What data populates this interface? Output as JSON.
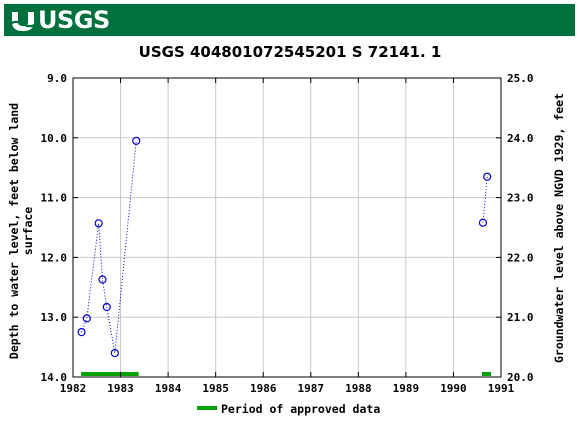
{
  "banner": {
    "logo_text": "USGS",
    "logo_icon": "usgs-wave-icon",
    "color": "#00703c"
  },
  "chart_data": {
    "type": "scatter",
    "title": "USGS 404801072545201 S 72141. 1",
    "ylabel_left": "Depth to water level, feet below land surface",
    "ylabel_left_lines": [
      "Depth to water level, feet below land",
      "surface"
    ],
    "ylabel_right": "Groundwater level above NGVD 1929, feet",
    "x_ticks": [
      "1982",
      "1983",
      "1984",
      "1985",
      "1986",
      "1987",
      "1988",
      "1989",
      "1990",
      "1991"
    ],
    "xlim": [
      1982,
      1991
    ],
    "y_left_ticks": [
      "9.0",
      "10.0",
      "11.0",
      "12.0",
      "13.0",
      "14.0"
    ],
    "ylim_left": [
      14.0,
      9.0
    ],
    "y_right_ticks": [
      "25.0",
      "24.0",
      "23.0",
      "22.0",
      "21.0",
      "20.0"
    ],
    "ylim_right": [
      20.0,
      25.0
    ],
    "grid": true,
    "series": [
      {
        "color": "#0000cc",
        "marker": "open-circle",
        "line": "dotted",
        "segments": [
          [
            {
              "x": 1982.18,
              "y": 13.25
            },
            {
              "x": 1982.29,
              "y": 13.02
            },
            {
              "x": 1982.54,
              "y": 11.43
            },
            {
              "x": 1982.62,
              "y": 12.37
            },
            {
              "x": 1982.71,
              "y": 12.83
            },
            {
              "x": 1982.88,
              "y": 13.6
            },
            {
              "x": 1983.33,
              "y": 10.05
            }
          ],
          [
            {
              "x": 1990.62,
              "y": 11.42
            },
            {
              "x": 1990.71,
              "y": 10.65
            }
          ]
        ]
      }
    ],
    "approved_periods": [
      {
        "start": 1982.17,
        "end": 1983.38
      },
      {
        "start": 1990.6,
        "end": 1990.79
      }
    ],
    "approved_color": "#00a000",
    "legend": {
      "label": "Period of approved data",
      "placement": "bottom-center"
    }
  }
}
